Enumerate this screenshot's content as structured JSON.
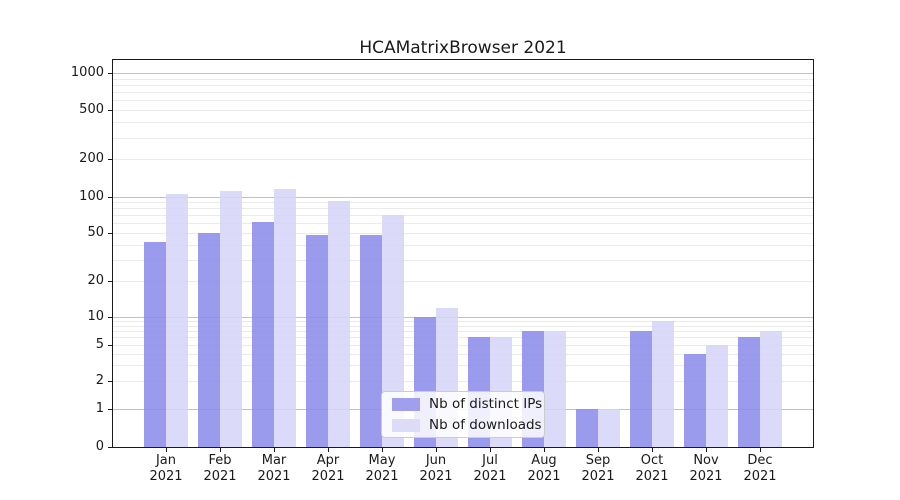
{
  "title": "HCAMatrixBrowser 2021",
  "legend": {
    "items": [
      {
        "label": "Nb of distinct IPs",
        "color": "#9f9fed"
      },
      {
        "label": "Nb of downloads",
        "color": "#dcdcf9"
      }
    ]
  },
  "chart_data": {
    "type": "bar",
    "title": "HCAMatrixBrowser 2021",
    "categories": [
      "Jan 2021",
      "Feb 2021",
      "Mar 2021",
      "Apr 2021",
      "May 2021",
      "Jun 2021",
      "Jul 2021",
      "Aug 2021",
      "Sep 2021",
      "Oct 2021",
      "Nov 2021",
      "Dec 2021"
    ],
    "month_labels": [
      "Jan",
      "Feb",
      "Mar",
      "Apr",
      "May",
      "Jun",
      "Jul",
      "Aug",
      "Sep",
      "Oct",
      "Nov",
      "Dec"
    ],
    "year_label": "2021",
    "series": [
      {
        "name": "Nb of distinct IPs",
        "color": "#9f9fed",
        "fill": "rgba(138,138,235,0.85)",
        "values": [
          42,
          50,
          61,
          48,
          48,
          10,
          6,
          7,
          1,
          7,
          4,
          6
        ]
      },
      {
        "name": "Nb of downloads",
        "color": "#dcdcf9",
        "fill": "rgba(213,213,248,0.85)",
        "values": [
          105,
          110,
          116,
          92,
          70,
          12,
          6,
          7,
          1,
          9,
          5,
          7
        ]
      }
    ],
    "xlabel": "",
    "ylabel": "",
    "yscale": "symlog",
    "ylim": [
      0,
      1000
    ],
    "yticks": [
      0,
      1,
      2,
      5,
      10,
      20,
      50,
      100,
      200,
      500,
      1000
    ],
    "grid": "horizontal major and minor gridlines",
    "legend_position": "inside plot, lower center-left"
  }
}
